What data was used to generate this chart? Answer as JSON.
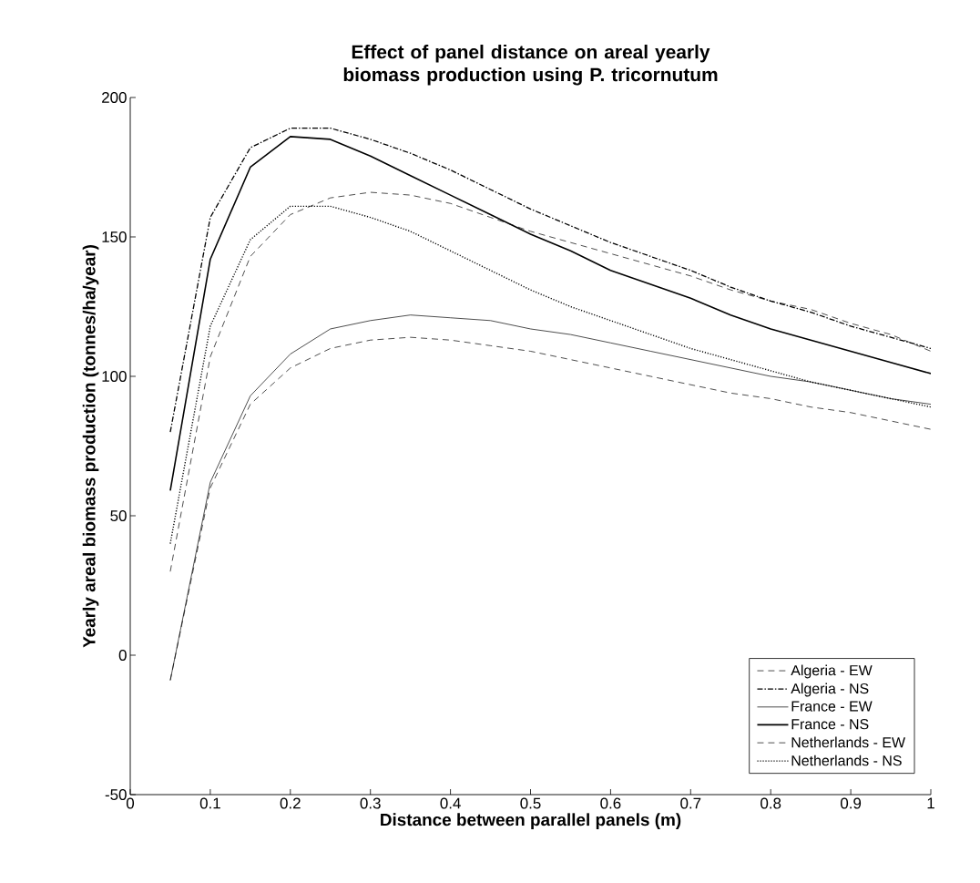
{
  "chart_data": {
    "type": "line",
    "title": "Effect of panel distance on areal yearly biomass production using P. tricornutum",
    "xlabel": "Distance between parallel panels (m)",
    "ylabel": "Yearly areal biomass production (tonnes/ha/year)",
    "x": [
      0.05,
      0.1,
      0.15,
      0.2,
      0.25,
      0.3,
      0.35,
      0.4,
      0.45,
      0.5,
      0.55,
      0.6,
      0.65,
      0.7,
      0.75,
      0.8,
      0.85,
      0.9,
      0.95,
      1
    ],
    "xlim": [
      0,
      1
    ],
    "xticks": [
      0,
      0.1,
      0.2,
      0.3,
      0.4,
      0.5,
      0.6,
      0.7,
      0.8,
      0.9,
      1
    ],
    "ylim": [
      -50,
      200
    ],
    "yticks": [
      -50,
      0,
      50,
      100,
      150,
      200
    ],
    "legend": "bottom right",
    "series": [
      {
        "name": "Algeria - EW",
        "color": "#000000",
        "line_style": "dashed",
        "values": [
          30,
          107,
          143,
          158,
          164,
          166,
          165,
          162,
          157,
          152,
          148,
          144,
          140,
          136,
          131,
          127,
          124,
          119,
          115,
          109
        ]
      },
      {
        "name": "Algeria - NS",
        "color": "#000000",
        "line_style": "dashdot",
        "values": [
          80,
          157,
          182,
          189,
          189,
          185,
          180,
          174,
          167,
          160,
          154,
          148,
          143,
          138,
          132,
          127,
          123,
          118,
          114,
          110
        ]
      },
      {
        "name": "France - EW",
        "color": "#000000",
        "line_style": "solid",
        "values": [
          -9,
          62,
          93,
          108,
          117,
          120,
          122,
          121,
          120,
          117,
          115,
          112,
          109,
          106,
          103,
          100,
          98,
          95,
          92,
          90
        ]
      },
      {
        "name": "France - NS",
        "color": "#000000",
        "line_style": "solid",
        "values": [
          59,
          142,
          175,
          186,
          185,
          179,
          172,
          165,
          158,
          151,
          145,
          138,
          133,
          128,
          122,
          117,
          113,
          109,
          105,
          101
        ]
      },
      {
        "name": "Netherlands - EW",
        "color": "#000000",
        "line_style": "dashed",
        "values": [
          -9,
          60,
          90,
          103,
          110,
          113,
          114,
          113,
          111,
          109,
          106,
          103,
          100,
          97,
          94,
          92,
          89,
          87,
          84,
          81
        ]
      },
      {
        "name": "Netherlands - NS",
        "color": "#000000",
        "line_style": "dotted",
        "values": [
          40,
          118,
          149,
          161,
          161,
          157,
          152,
          145,
          138,
          131,
          125,
          120,
          115,
          110,
          106,
          102,
          98,
          95,
          92,
          89
        ]
      }
    ]
  }
}
